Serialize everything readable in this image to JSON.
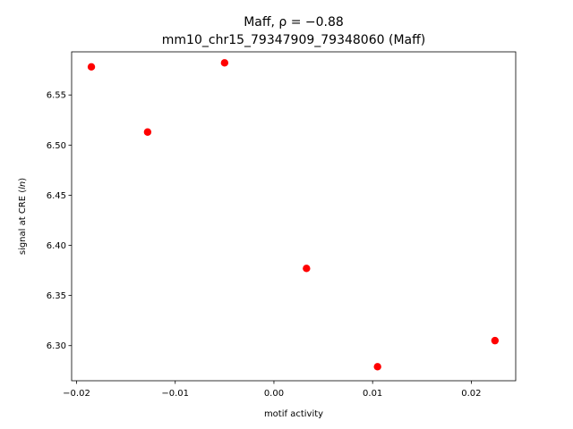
{
  "chart_data": {
    "type": "scatter",
    "title_line1": "Maff, ρ = −0.88",
    "title_line2": "mm10_chr15_79347909_79348060 (Maff)",
    "xlabel": "motif activity",
    "ylabel": "signal at CRE (ln)",
    "xlim": [
      -0.0205,
      0.0245
    ],
    "ylim": [
      6.265,
      6.593
    ],
    "xticks": [
      -0.02,
      -0.01,
      0.0,
      0.01,
      0.02
    ],
    "xtick_labels": [
      "−0.02",
      "−0.01",
      "0.00",
      "0.01",
      "0.02"
    ],
    "yticks": [
      6.3,
      6.35,
      6.4,
      6.45,
      6.5,
      6.55
    ],
    "ytick_labels": [
      "6.30",
      "6.35",
      "6.40",
      "6.45",
      "6.50",
      "6.55"
    ],
    "grid": false,
    "marker_color": "#ff0000",
    "points": [
      {
        "x": -0.0185,
        "y": 6.578
      },
      {
        "x": -0.0128,
        "y": 6.513
      },
      {
        "x": -0.005,
        "y": 6.582
      },
      {
        "x": 0.0033,
        "y": 6.377
      },
      {
        "x": 0.0105,
        "y": 6.279
      },
      {
        "x": 0.0224,
        "y": 6.305
      }
    ]
  }
}
